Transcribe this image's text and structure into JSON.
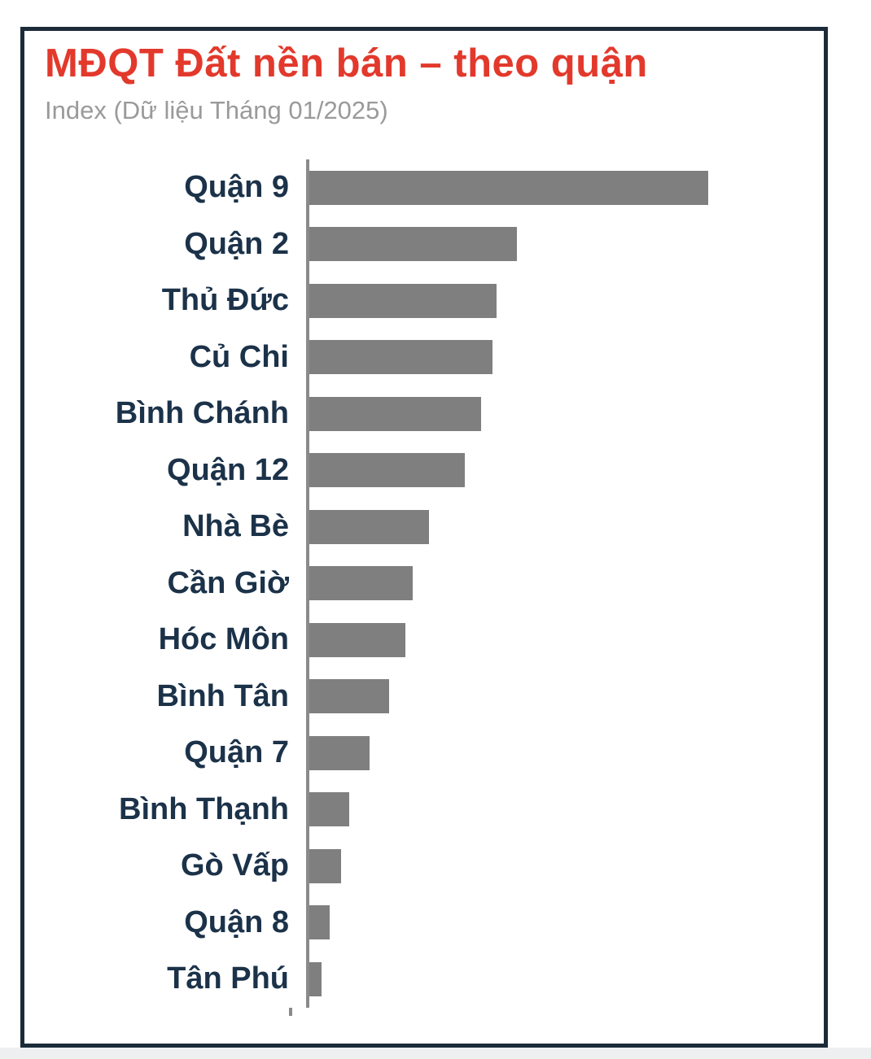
{
  "header": {
    "title": "MĐQT Đất nền bán – theo quận",
    "subtitle": "Index (Dữ liệu Tháng 01/2025)"
  },
  "colors": {
    "title": "#e2392c",
    "subtitle": "#9a9a9a",
    "label": "#1b3249",
    "bar": "#7f7f7f",
    "axis": "#8a8a8a",
    "card_border": "#1c2b39"
  },
  "chart_data": {
    "type": "bar",
    "orientation": "horizontal",
    "title": "MĐQT Đất nền bán – theo quận",
    "subtitle": "Index (Dữ liệu Tháng 01/2025)",
    "categories": [
      "Quận 9",
      "Quận 2",
      "Thủ Đức",
      "Củ Chi",
      "Bình Chánh",
      "Quận 12",
      "Nhà Bè",
      "Cần Giờ",
      "Hóc Môn",
      "Bình Tân",
      "Quận 7",
      "Bình Thạnh",
      "Gò Vấp",
      "Quận 8",
      "Tân Phú"
    ],
    "values": [
      100,
      52,
      47,
      46,
      43,
      39,
      30,
      26,
      24,
      20,
      15,
      10,
      8,
      5,
      3
    ],
    "xlim": [
      0,
      100
    ],
    "xlabel": "",
    "ylabel": "",
    "grid": false,
    "legend": false,
    "value_axis_ticks_visible": false,
    "bar_color": "#7f7f7f",
    "axis_color": "#8a8a8a",
    "label_color": "#1b3249"
  }
}
